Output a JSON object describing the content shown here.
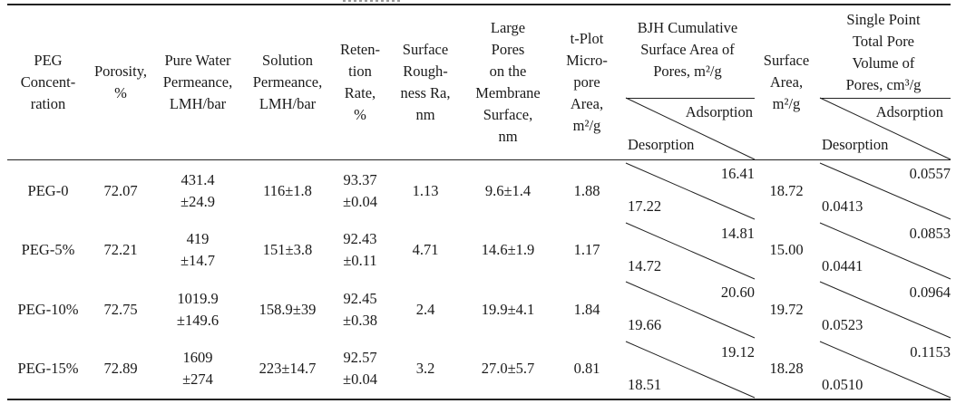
{
  "headers": {
    "peg": "PEG\nConcent-\nration",
    "porosity": "Porosity,\n%",
    "pure_water": "Pure Water\nPermeance,\nLMH/bar",
    "solution": "Solution\nPermeance,\nLMH/bar",
    "retention": "Reten-\ntion\nRate,\n%",
    "roughness": "Surface\nRough-\nness Ra,\nnm",
    "large_pores": "Large\nPores\non the\nMembrane\nSurface,\nnm",
    "tplot": "t-Plot\nMicro-\npore\nArea,\nm²/g",
    "bjh": "BJH Cumulative\nSurface Area of\nPores, m²/g",
    "bjh_ads": "Adsorption",
    "bjh_des": "Desorption",
    "surface_area": "Surface\nArea,\nm²/g",
    "single_point": "Single Point\nTotal Pore\nVolume of\nPores, cm³/g",
    "sp_ads": "Adsorption",
    "sp_des": "Desorption"
  },
  "rows": [
    {
      "peg": "PEG-0",
      "porosity": "72.07",
      "pure_water": "431.4\n±24.9",
      "solution": "116±1.8",
      "retention": "93.37\n±0.04",
      "roughness": "1.13",
      "large_pores": "9.6±1.4",
      "tplot": "1.88",
      "bjh_ads": "16.41",
      "bjh_des": "17.22",
      "surface_area": "18.72",
      "sp_ads": "0.0557",
      "sp_des": "0.0413"
    },
    {
      "peg": "PEG-5%",
      "porosity": "72.21",
      "pure_water": "419\n±14.7",
      "solution": "151±3.8",
      "retention": "92.43\n±0.11",
      "roughness": "4.71",
      "large_pores": "14.6±1.9",
      "tplot": "1.17",
      "bjh_ads": "14.81",
      "bjh_des": "14.72",
      "surface_area": "15.00",
      "sp_ads": "0.0853",
      "sp_des": "0.0441"
    },
    {
      "peg": "PEG-10%",
      "porosity": "72.75",
      "pure_water": "1019.9\n±149.6",
      "solution": "158.9±39",
      "retention": "92.45\n±0.38",
      "roughness": "2.4",
      "large_pores": "19.9±4.1",
      "tplot": "1.84",
      "bjh_ads": "20.60",
      "bjh_des": "19.66",
      "surface_area": "19.72",
      "sp_ads": "0.0964",
      "sp_des": "0.0523"
    },
    {
      "peg": "PEG-15%",
      "porosity": "72.89",
      "pure_water": "1609\n±274",
      "solution": "223±14.7",
      "retention": "92.57\n±0.04",
      "roughness": "3.2",
      "large_pores": "27.0±5.7",
      "tplot": "0.81",
      "bjh_ads": "19.12",
      "bjh_des": "18.51",
      "surface_area": "18.28",
      "sp_ads": "0.1153",
      "sp_des": "0.0510"
    }
  ]
}
